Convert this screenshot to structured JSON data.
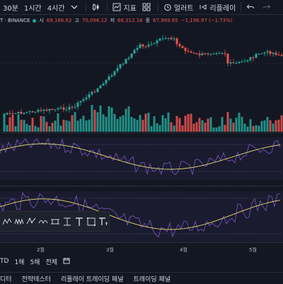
{
  "toolbar": {
    "items": [
      "30분",
      "1시간",
      "4시간"
    ],
    "indicators_label": "지표",
    "alert_label": "얼러트",
    "replay_label": "리플레이"
  },
  "symbol": {
    "name": "T · BINANCE",
    "open_label": "시",
    "open": "69,166.62",
    "high_label": "고",
    "high": "70,096.12",
    "low_label": "저",
    "low": "66,312.16",
    "close_label": "종",
    "close": "67,969.65",
    "change": "−1,196.97 (−1.73%)"
  },
  "xaxis": {
    "labels": [
      "2월",
      "3월",
      "4월",
      "5월"
    ]
  },
  "ranges": [
    "TD",
    "1해",
    "5해",
    "전체"
  ],
  "bottom_tabs": [
    "디터",
    "전략테스터",
    "리플레이 트레이딩 패널",
    "트레이딩 패널"
  ],
  "colors": {
    "up": "#26a69a",
    "down": "#ef5350",
    "bg": "#131722",
    "accent": "#2962ff",
    "osc": "#7e57c2",
    "signal": "#e8d77a"
  }
}
